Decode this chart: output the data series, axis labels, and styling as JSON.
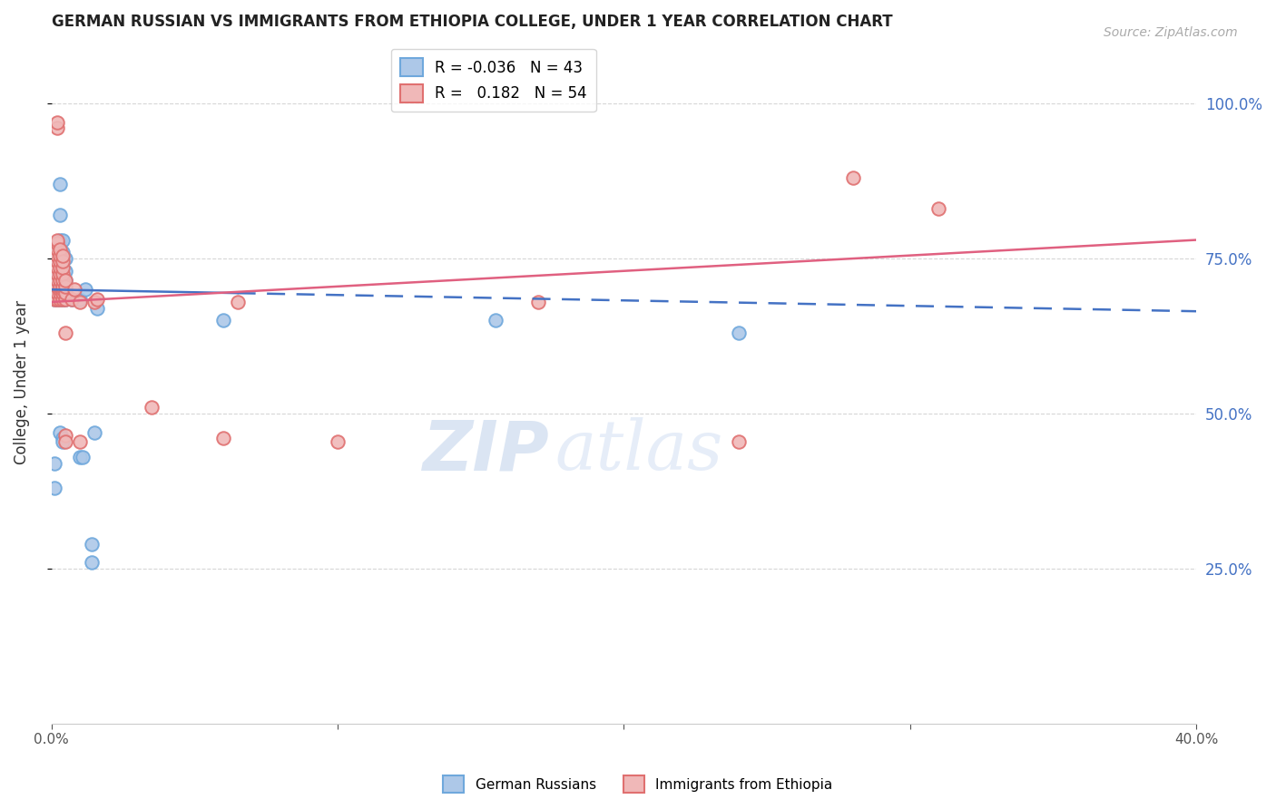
{
  "title": "GERMAN RUSSIAN VS IMMIGRANTS FROM ETHIOPIA COLLEGE, UNDER 1 YEAR CORRELATION CHART",
  "source": "Source: ZipAtlas.com",
  "ylabel": "College, Under 1 year",
  "right_yticks": [
    "100.0%",
    "75.0%",
    "50.0%",
    "25.0%"
  ],
  "right_ytick_vals": [
    1.0,
    0.75,
    0.5,
    0.25
  ],
  "xlim": [
    0.0,
    0.4
  ],
  "ylim": [
    0.0,
    1.1
  ],
  "blue_scatter": [
    [
      0.001,
      0.685
    ],
    [
      0.002,
      0.685
    ],
    [
      0.002,
      0.695
    ],
    [
      0.002,
      0.71
    ],
    [
      0.002,
      0.72
    ],
    [
      0.002,
      0.75
    ],
    [
      0.002,
      0.77
    ],
    [
      0.003,
      0.685
    ],
    [
      0.003,
      0.69
    ],
    [
      0.003,
      0.695
    ],
    [
      0.003,
      0.7
    ],
    [
      0.003,
      0.705
    ],
    [
      0.003,
      0.71
    ],
    [
      0.003,
      0.72
    ],
    [
      0.003,
      0.73
    ],
    [
      0.003,
      0.74
    ],
    [
      0.003,
      0.755
    ],
    [
      0.003,
      0.76
    ],
    [
      0.003,
      0.78
    ],
    [
      0.003,
      0.82
    ],
    [
      0.003,
      0.87
    ],
    [
      0.004,
      0.685
    ],
    [
      0.004,
      0.69
    ],
    [
      0.004,
      0.695
    ],
    [
      0.004,
      0.7
    ],
    [
      0.004,
      0.705
    ],
    [
      0.004,
      0.715
    ],
    [
      0.004,
      0.72
    ],
    [
      0.004,
      0.73
    ],
    [
      0.004,
      0.755
    ],
    [
      0.004,
      0.76
    ],
    [
      0.004,
      0.78
    ],
    [
      0.005,
      0.685
    ],
    [
      0.005,
      0.695
    ],
    [
      0.005,
      0.7
    ],
    [
      0.005,
      0.715
    ],
    [
      0.005,
      0.73
    ],
    [
      0.005,
      0.75
    ],
    [
      0.01,
      0.685
    ],
    [
      0.012,
      0.7
    ],
    [
      0.003,
      0.47
    ],
    [
      0.004,
      0.46
    ],
    [
      0.004,
      0.455
    ],
    [
      0.01,
      0.43
    ],
    [
      0.011,
      0.43
    ],
    [
      0.015,
      0.47
    ],
    [
      0.001,
      0.38
    ],
    [
      0.001,
      0.42
    ],
    [
      0.014,
      0.29
    ],
    [
      0.014,
      0.26
    ],
    [
      0.016,
      0.67
    ],
    [
      0.24,
      0.63
    ],
    [
      0.155,
      0.65
    ],
    [
      0.06,
      0.65
    ],
    [
      0.007,
      0.685
    ]
  ],
  "pink_scatter": [
    [
      0.001,
      0.685
    ],
    [
      0.002,
      0.685
    ],
    [
      0.002,
      0.695
    ],
    [
      0.002,
      0.705
    ],
    [
      0.002,
      0.715
    ],
    [
      0.002,
      0.725
    ],
    [
      0.002,
      0.735
    ],
    [
      0.002,
      0.745
    ],
    [
      0.002,
      0.755
    ],
    [
      0.002,
      0.765
    ],
    [
      0.002,
      0.775
    ],
    [
      0.002,
      0.78
    ],
    [
      0.002,
      0.96
    ],
    [
      0.002,
      0.97
    ],
    [
      0.003,
      0.685
    ],
    [
      0.003,
      0.695
    ],
    [
      0.003,
      0.7
    ],
    [
      0.003,
      0.705
    ],
    [
      0.003,
      0.715
    ],
    [
      0.003,
      0.725
    ],
    [
      0.003,
      0.735
    ],
    [
      0.003,
      0.745
    ],
    [
      0.003,
      0.755
    ],
    [
      0.003,
      0.765
    ],
    [
      0.004,
      0.685
    ],
    [
      0.004,
      0.695
    ],
    [
      0.004,
      0.7
    ],
    [
      0.004,
      0.705
    ],
    [
      0.004,
      0.715
    ],
    [
      0.004,
      0.725
    ],
    [
      0.004,
      0.735
    ],
    [
      0.004,
      0.745
    ],
    [
      0.004,
      0.755
    ],
    [
      0.005,
      0.685
    ],
    [
      0.005,
      0.695
    ],
    [
      0.005,
      0.705
    ],
    [
      0.005,
      0.715
    ],
    [
      0.005,
      0.63
    ],
    [
      0.005,
      0.465
    ],
    [
      0.005,
      0.455
    ],
    [
      0.007,
      0.685
    ],
    [
      0.008,
      0.7
    ],
    [
      0.01,
      0.68
    ],
    [
      0.01,
      0.455
    ],
    [
      0.015,
      0.68
    ],
    [
      0.016,
      0.685
    ],
    [
      0.035,
      0.51
    ],
    [
      0.06,
      0.46
    ],
    [
      0.065,
      0.68
    ],
    [
      0.1,
      0.455
    ],
    [
      0.17,
      0.68
    ],
    [
      0.24,
      0.455
    ],
    [
      0.28,
      0.88
    ],
    [
      0.31,
      0.83
    ]
  ],
  "blue_line": {
    "x0": 0.0,
    "x1": 0.4,
    "y0": 0.7,
    "y1": 0.665
  },
  "blue_line_solid_end": 0.065,
  "pink_line": {
    "x0": 0.0,
    "x1": 0.4,
    "y0": 0.68,
    "y1": 0.78
  },
  "blue_color": "#6fa8dc",
  "pink_color": "#e07070",
  "blue_fill": "#adc8e8",
  "pink_fill": "#f0b8b8",
  "blue_line_color": "#4472c4",
  "pink_line_color": "#e06080",
  "watermark_text": "ZIP",
  "watermark_text2": "atlas",
  "background_color": "#ffffff",
  "grid_color": "#cccccc",
  "right_axis_color": "#4472c4",
  "title_fontsize": 12,
  "source_text": "Source: ZipAtlas.com"
}
